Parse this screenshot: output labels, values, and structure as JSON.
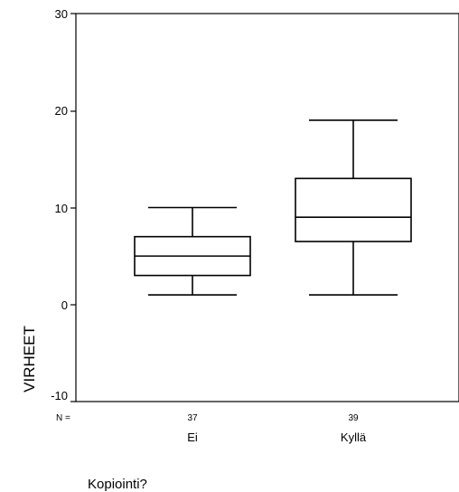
{
  "chart_data": {
    "type": "boxplot",
    "xlabel": "Kopiointi?",
    "ylabel": "VIRHEET",
    "ylim": [
      -10,
      30
    ],
    "yticks": [
      "-10",
      "0",
      "10",
      "20",
      "30"
    ],
    "n_prefix": "N =",
    "grid": false,
    "categories": [
      "Ei",
      "Kyllä"
    ],
    "n": [
      "37",
      "39"
    ],
    "boxes": [
      {
        "category": "Ei",
        "whisker_low": 1,
        "q1": 3,
        "median": 5,
        "q3": 7,
        "whisker_high": 10
      },
      {
        "category": "Kyllä",
        "whisker_low": 1,
        "q1": 6.5,
        "median": 9,
        "q3": 13,
        "whisker_high": 19
      }
    ]
  }
}
